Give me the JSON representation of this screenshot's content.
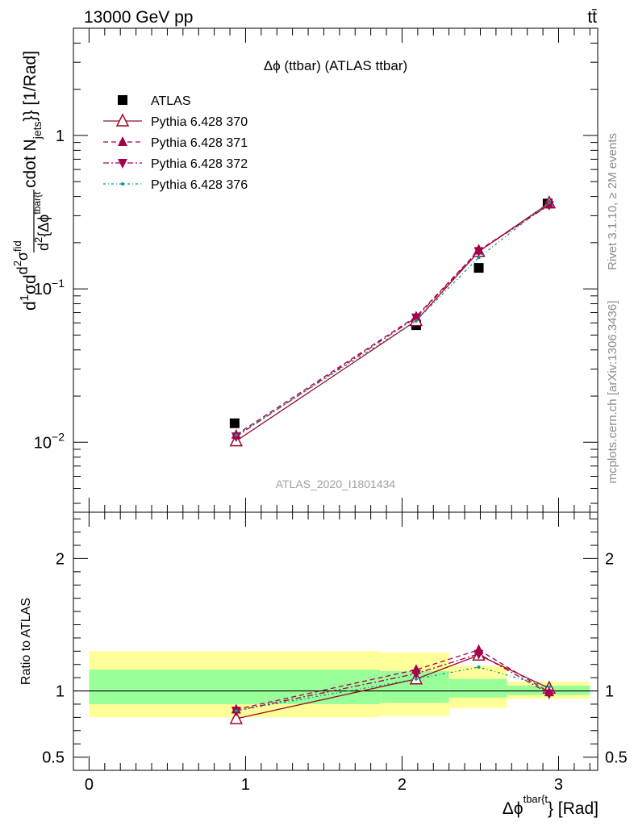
{
  "header": {
    "energy_label": "13000 GeV pp",
    "process_label": "tt̄"
  },
  "side_labels": {
    "rivet": "Rivet 3.1.10, ≥ 2M events",
    "mcplots": "mcplots.cern.ch [arXiv:1306.3436]"
  },
  "chart_data": [
    {
      "type": "scatter",
      "panel": "main",
      "title": "Δϕ (ttbar) (ATLAS ttbar)",
      "watermark": "ATLAS_2020_I1801434",
      "ylabel": "d1σd dσ2fid d2 {Δϕtbar{t cdot Njets}} [1/Rad]",
      "ylabel_parts": {
        "frac_num": "1",
        "frac_den": "σ",
        "num_d": "d",
        "num_sigma": "σ",
        "sup_2": "2",
        "sup_fid": "fid",
        "den_d": "d",
        "den_body": "{Δϕ",
        "den_sup": "tbar{t",
        "tail": "cdot N",
        "tail_sub": "jets",
        "tail_end": "}} [1/Rad]"
      },
      "yscale": "log",
      "ylim": [
        0.0035,
        5
      ],
      "xlim": [
        -0.1,
        3.25
      ],
      "y_ticks": [
        {
          "value": 0.01,
          "label": "10",
          "exp": "−2"
        },
        {
          "value": 0.1,
          "label": "10",
          "exp": "−1"
        },
        {
          "value": 1,
          "label": "1",
          "exp": ""
        }
      ],
      "legend_position": "top-left",
      "series": [
        {
          "name": "ATLAS",
          "color": "#000000",
          "marker": "square",
          "line": "none",
          "x": [
            0.93,
            2.09,
            2.49,
            2.93
          ],
          "y": [
            0.0133,
            0.058,
            0.137,
            0.36
          ]
        },
        {
          "name": "Pythia 6.428 370",
          "color": "#9b0a2a",
          "marker": "triangle-open",
          "line": "solid",
          "x": [
            0.94,
            2.09,
            2.49,
            2.94
          ],
          "y": [
            0.0102,
            0.062,
            0.175,
            0.363
          ]
        },
        {
          "name": "Pythia 6.428 371",
          "color": "#a4004e",
          "marker": "triangle",
          "line": "dashed",
          "x": [
            0.94,
            2.09,
            2.49,
            2.94
          ],
          "y": [
            0.0112,
            0.066,
            0.178,
            0.355
          ]
        },
        {
          "name": "Pythia 6.428 372",
          "color": "#a4004e",
          "marker": "triangle-down",
          "line": "dashdot",
          "x": [
            0.94,
            2.09,
            2.49,
            2.94
          ],
          "y": [
            0.0109,
            0.065,
            0.176,
            0.352
          ]
        },
        {
          "name": "Pythia 6.428 376",
          "color": "#0f9688",
          "marker": "dot",
          "line": "dashdotted",
          "x": [
            0.94,
            2.09,
            2.49,
            2.94
          ],
          "y": [
            0.0111,
            0.062,
            0.16,
            0.365
          ]
        }
      ]
    },
    {
      "type": "line",
      "panel": "ratio",
      "ylabel": "Ratio to ATLAS",
      "xlabel": "Δϕtbar{t} [Rad]",
      "xlabel_parts": {
        "base": "Δϕ",
        "sup": "tbar{t",
        "tail": "} [Rad]"
      },
      "ylim": [
        0.4,
        2.35
      ],
      "xlim": [
        -0.1,
        3.25
      ],
      "x_ticks": [
        0,
        1,
        2,
        3
      ],
      "y_ticks": [
        0.5,
        1,
        2
      ],
      "bands": [
        {
          "x_range": [
            0.0,
            1.86
          ],
          "yellow": [
            0.8,
            1.3
          ],
          "green": [
            0.9,
            1.16
          ]
        },
        {
          "x_range": [
            1.86,
            2.3
          ],
          "yellow": [
            0.81,
            1.29
          ],
          "green": [
            0.91,
            1.15
          ]
        },
        {
          "x_range": [
            2.3,
            2.67
          ],
          "yellow": [
            0.87,
            1.19
          ],
          "green": [
            0.95,
            1.09
          ]
        },
        {
          "x_range": [
            2.67,
            3.2
          ],
          "yellow": [
            0.94,
            1.07
          ],
          "green": [
            0.97,
            1.04
          ]
        }
      ],
      "series": [
        {
          "name": "Pythia 6.428 370",
          "color": "#9b0a2a",
          "marker": "triangle-open",
          "line": "solid",
          "x": [
            0.94,
            2.09,
            2.49,
            2.94
          ],
          "y": [
            0.79,
            1.09,
            1.27,
            1.02
          ]
        },
        {
          "name": "Pythia 6.428 371",
          "color": "#a4004e",
          "marker": "triangle",
          "line": "dashed",
          "x": [
            0.94,
            2.09,
            2.49,
            2.94
          ],
          "y": [
            0.86,
            1.16,
            1.31,
            0.99
          ]
        },
        {
          "name": "Pythia 6.428 372",
          "color": "#a4004e",
          "marker": "triangle-down",
          "line": "dashdot",
          "x": [
            0.94,
            2.09,
            2.49,
            2.94
          ],
          "y": [
            0.85,
            1.13,
            1.28,
            0.98
          ]
        },
        {
          "name": "Pythia 6.428 376",
          "color": "#0f9688",
          "marker": "dot",
          "line": "dashdotted",
          "x": [
            0.94,
            2.09,
            2.49,
            2.94
          ],
          "y": [
            0.85,
            1.09,
            1.18,
            1.03
          ]
        }
      ]
    }
  ]
}
